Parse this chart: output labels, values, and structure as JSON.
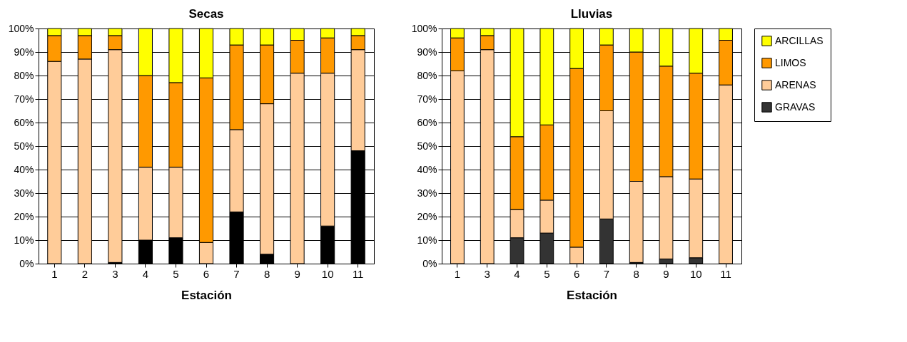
{
  "chart_data": [
    {
      "type": "bar",
      "title": "Secas",
      "xlabel": "Estación",
      "stacked": true,
      "grid": "y",
      "legend": false,
      "categories": [
        "1",
        "2",
        "3",
        "4",
        "5",
        "6",
        "7",
        "8",
        "9",
        "10",
        "11"
      ],
      "ylim": [
        0,
        100
      ],
      "yticks": [
        {
          "value": 0,
          "label": "0%"
        },
        {
          "value": 10,
          "label": "10%"
        },
        {
          "value": 20,
          "label": "20%"
        },
        {
          "value": 30,
          "label": "30%"
        },
        {
          "value": 40,
          "label": "40%"
        },
        {
          "value": 50,
          "label": "50%"
        },
        {
          "value": 60,
          "label": "60%"
        },
        {
          "value": 70,
          "label": "70%"
        },
        {
          "value": 80,
          "label": "80%"
        },
        {
          "value": 90,
          "label": "90%"
        },
        {
          "value": 100,
          "label": "100%"
        }
      ],
      "series": [
        {
          "color": "#000000",
          "values": [
            0,
            0,
            0.5,
            10,
            11,
            0,
            22,
            4,
            0,
            16,
            48
          ]
        },
        {
          "color": "#ffcc99",
          "values": [
            86,
            87,
            90.5,
            31,
            30,
            9,
            35,
            64,
            81,
            65,
            43
          ]
        },
        {
          "color": "#ff9900",
          "values": [
            11,
            10,
            6,
            39,
            36,
            70,
            36,
            25,
            14,
            15,
            6
          ]
        },
        {
          "color": "#ffff00",
          "values": [
            3,
            3,
            3,
            20,
            23,
            21,
            7,
            7,
            5,
            4,
            3
          ]
        }
      ]
    },
    {
      "type": "bar",
      "title": "Lluvias",
      "xlabel": "Estación",
      "stacked": true,
      "grid": "y",
      "legend": "right",
      "categories": [
        "1",
        "3",
        "4",
        "5",
        "6",
        "7",
        "8",
        "9",
        "10",
        "11"
      ],
      "ylim": [
        0,
        100
      ],
      "yticks": [
        {
          "value": 0,
          "label": "0%"
        },
        {
          "value": 10,
          "label": "10%"
        },
        {
          "value": 20,
          "label": "20%"
        },
        {
          "value": 30,
          "label": "30%"
        },
        {
          "value": 40,
          "label": "40%"
        },
        {
          "value": 50,
          "label": "50%"
        },
        {
          "value": 60,
          "label": "60%"
        },
        {
          "value": 70,
          "label": "70%"
        },
        {
          "value": 80,
          "label": "80%"
        },
        {
          "value": 90,
          "label": "90%"
        },
        {
          "value": 100,
          "label": "100%"
        }
      ],
      "series": [
        {
          "name": "GRAVAS",
          "color": "#333333",
          "values": [
            0,
            0,
            11,
            13,
            0,
            19,
            0.5,
            2,
            2.5,
            0
          ]
        },
        {
          "name": "ARENAS",
          "color": "#ffcc99",
          "values": [
            82,
            91,
            12,
            14,
            7,
            46,
            34.5,
            35,
            33.5,
            76
          ]
        },
        {
          "name": "LIMOS",
          "color": "#ff9900",
          "values": [
            14,
            6,
            31,
            32,
            76,
            28,
            55,
            47,
            45,
            19
          ]
        },
        {
          "name": "ARCILLAS",
          "color": "#ffff00",
          "values": [
            4,
            3,
            46,
            41,
            17,
            7,
            10,
            16,
            19,
            5
          ]
        }
      ]
    }
  ]
}
